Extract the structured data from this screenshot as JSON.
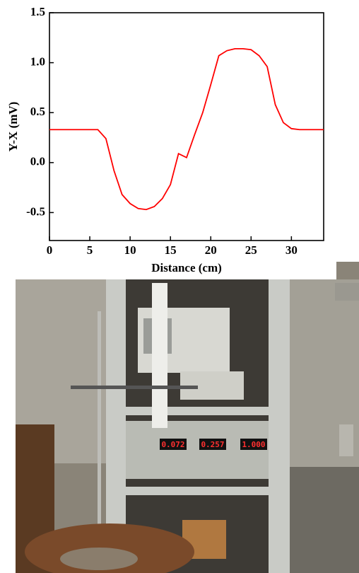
{
  "chart_data": {
    "type": "line",
    "x_label": "Distance (cm)",
    "y_label": "Y-X (mV)",
    "x": [
      0,
      6,
      7,
      8,
      9,
      10,
      11,
      12,
      13,
      14,
      15,
      16,
      17,
      18,
      19,
      20,
      21,
      22,
      23,
      24,
      25,
      26,
      27,
      28,
      29,
      30,
      31,
      34
    ],
    "values": [
      0.33,
      0.33,
      0.24,
      -0.08,
      -0.32,
      -0.41,
      -0.46,
      -0.47,
      -0.44,
      -0.36,
      -0.22,
      0.09,
      0.05,
      0.28,
      0.5,
      0.78,
      1.07,
      1.12,
      1.14,
      1.14,
      1.13,
      1.07,
      0.96,
      0.58,
      0.4,
      0.34,
      0.33,
      0.33
    ],
    "color": "#ff0000",
    "xlim": [
      0,
      34
    ],
    "xticks": [
      0,
      5,
      10,
      15,
      20,
      25,
      30
    ],
    "ylim": [
      -0.78,
      1.5
    ],
    "yticks": [
      {
        "value": -0.5,
        "label": "-0.5"
      },
      {
        "value": 0,
        "label": "0.0"
      },
      0.5,
      {
        "value": 1,
        "label": "1.0"
      },
      1.5
    ],
    "grid": false
  },
  "photo": {
    "display_readings": [
      "0.072",
      "0.257",
      "1.000"
    ]
  }
}
